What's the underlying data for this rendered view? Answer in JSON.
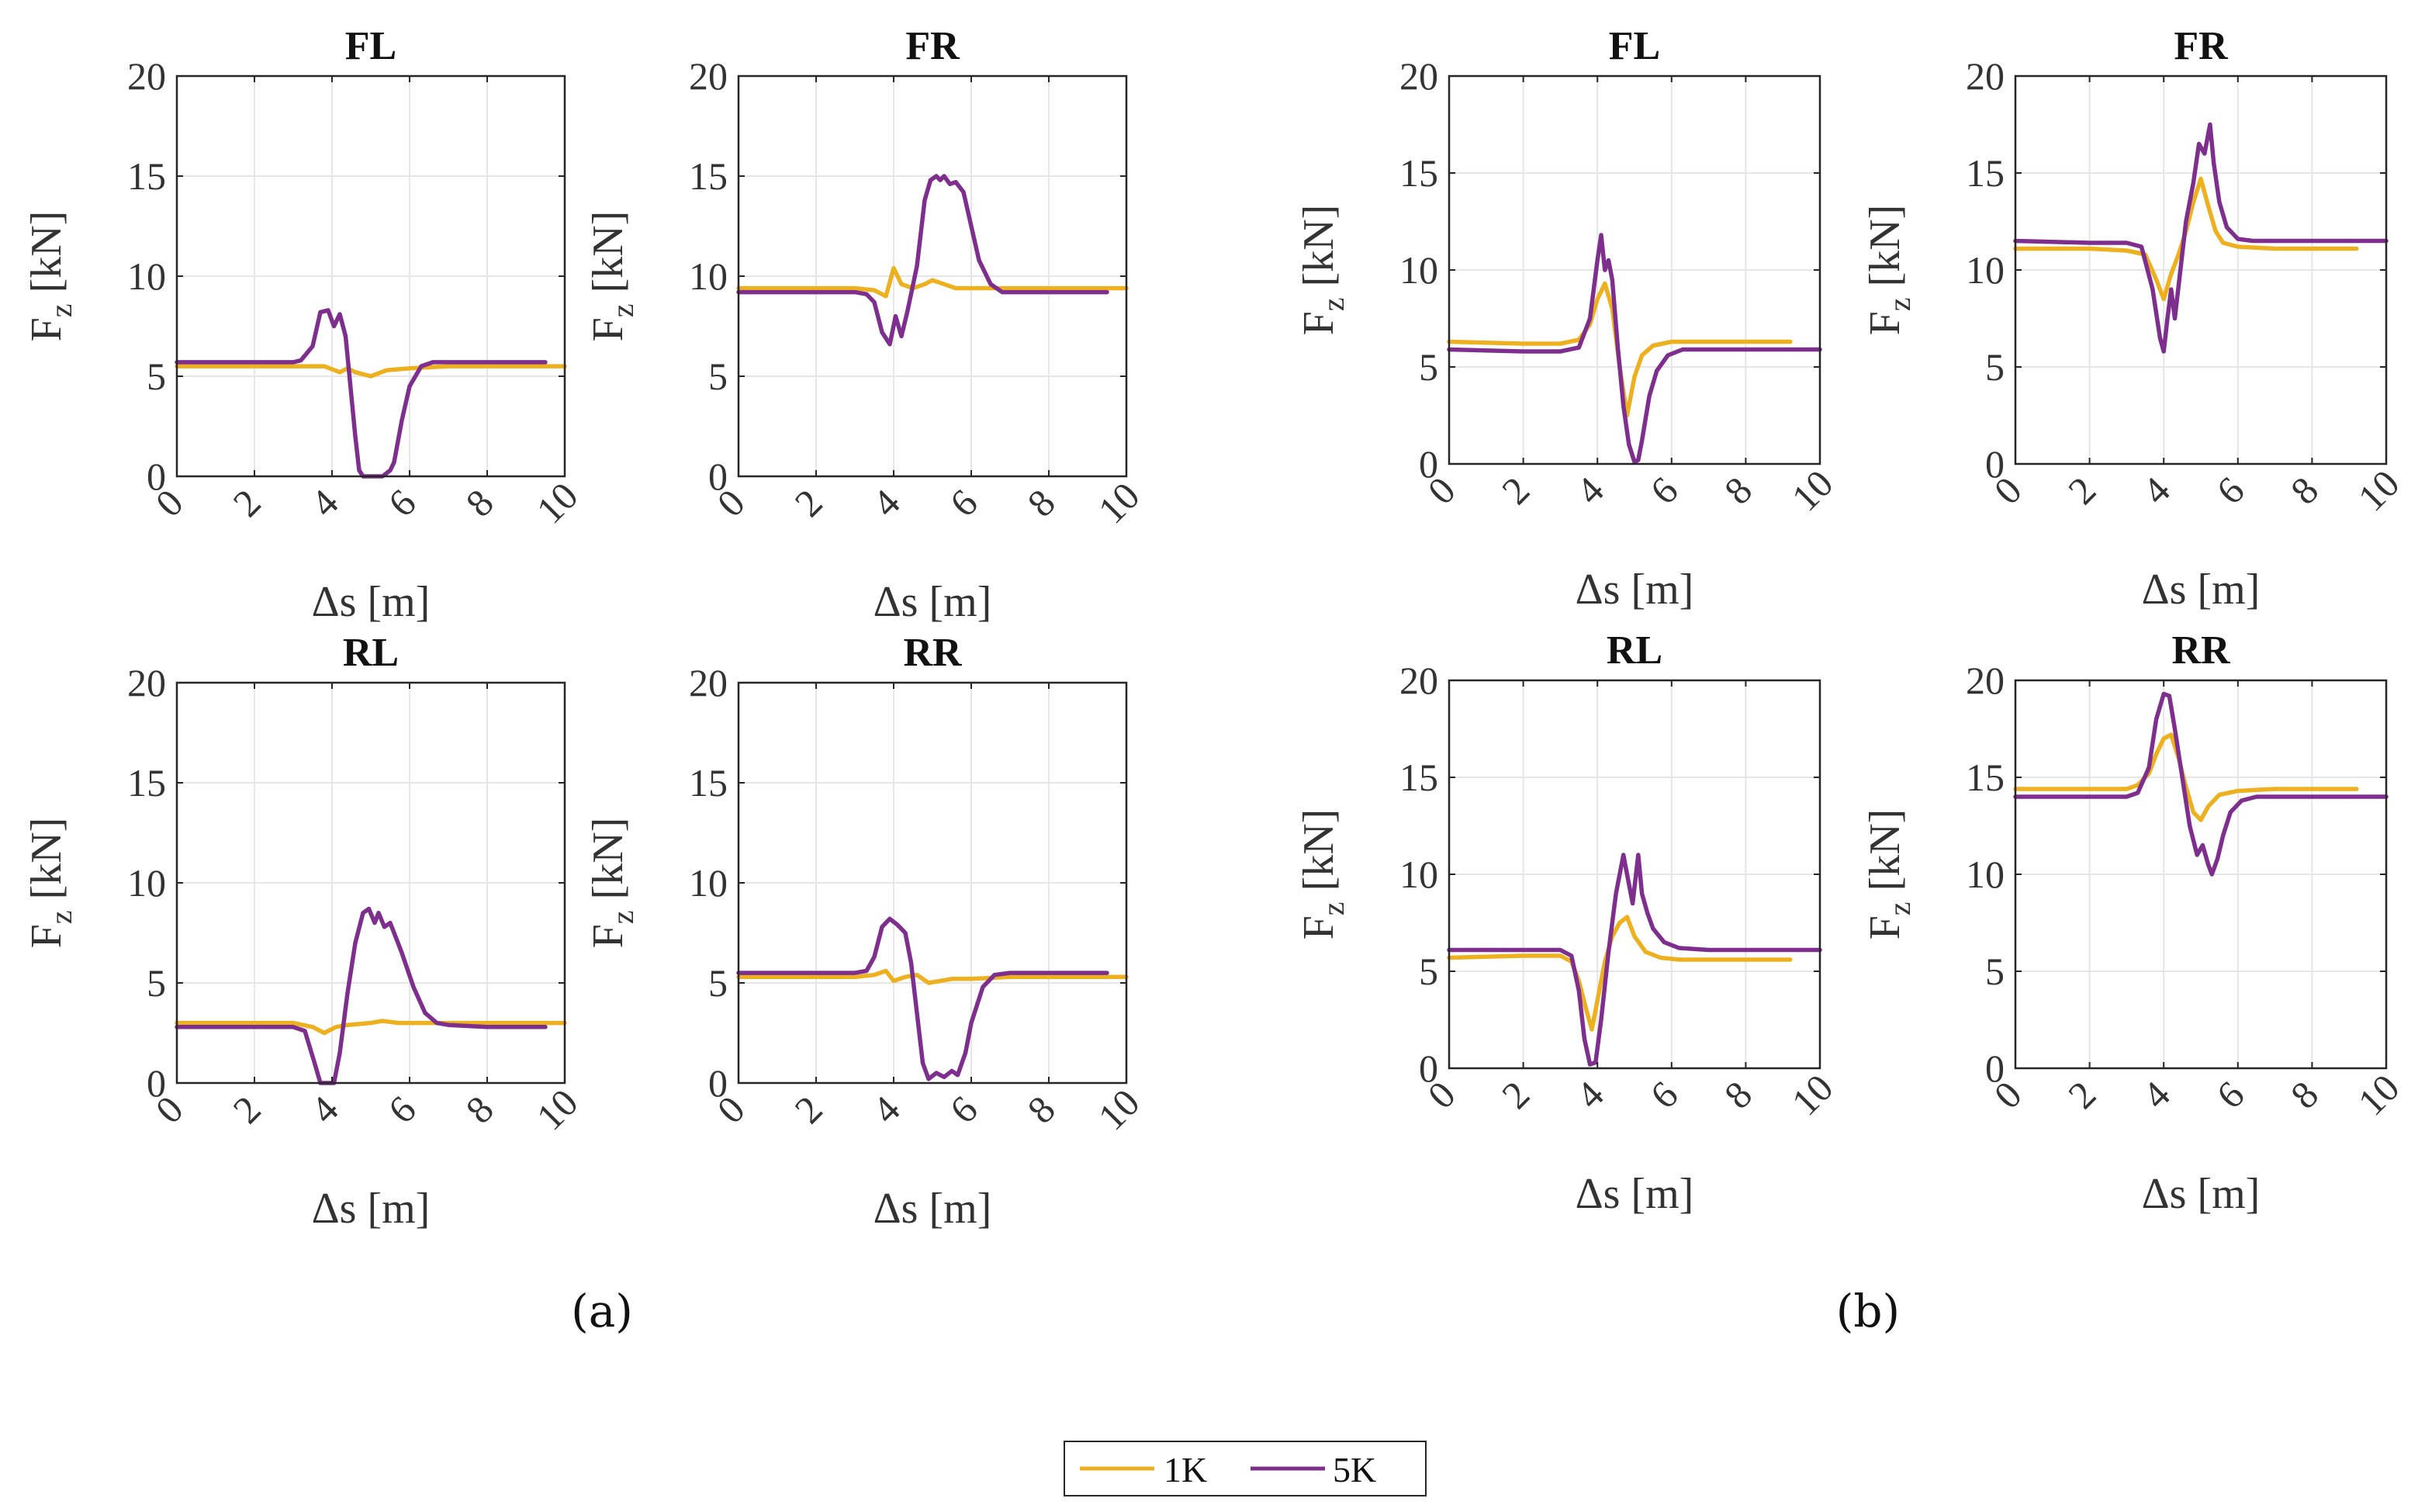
{
  "figure": {
    "panel_labels": [
      "(a)",
      "(b)"
    ]
  },
  "legend": {
    "items": [
      {
        "label": "1K",
        "color": "#EDB120"
      },
      {
        "label": "5K",
        "color": "#7E2F8E"
      }
    ]
  },
  "chart_data": [
    {
      "panel": "(a)",
      "title": "FL",
      "type": "line",
      "xlabel": "Δs [m]",
      "ylabel": "F_z [kN]",
      "xlim": [
        0,
        10
      ],
      "ylim": [
        0,
        20
      ],
      "xticks": [
        0,
        2,
        4,
        6,
        8,
        10
      ],
      "yticks": [
        0,
        5,
        10,
        15,
        20
      ],
      "grid": true,
      "series": [
        {
          "name": "1K",
          "x": [
            0,
            2,
            3,
            3.8,
            4.2,
            4.4,
            4.6,
            5,
            5.4,
            6,
            7,
            8,
            9,
            10
          ],
          "y": [
            5.5,
            5.5,
            5.5,
            5.5,
            5.2,
            5.4,
            5.2,
            5.0,
            5.3,
            5.4,
            5.5,
            5.5,
            5.5,
            5.5
          ]
        },
        {
          "name": "5K",
          "x": [
            0,
            2,
            3,
            3.2,
            3.5,
            3.7,
            3.9,
            4.05,
            4.2,
            4.35,
            4.5,
            4.6,
            4.7,
            4.8,
            5.0,
            5.3,
            5.5,
            5.6,
            5.8,
            6.0,
            6.3,
            6.6,
            7,
            8,
            9.5
          ],
          "y": [
            5.7,
            5.7,
            5.7,
            5.8,
            6.5,
            8.2,
            8.3,
            7.5,
            8.1,
            7.0,
            4.0,
            2.0,
            0.3,
            0,
            0,
            0,
            0.3,
            0.7,
            2.8,
            4.5,
            5.5,
            5.7,
            5.7,
            5.7,
            5.7
          ]
        }
      ]
    },
    {
      "panel": "(a)",
      "title": "FR",
      "type": "line",
      "xlabel": "Δs [m]",
      "ylabel": "F_z [kN]",
      "xlim": [
        0,
        10
      ],
      "ylim": [
        0,
        20
      ],
      "xticks": [
        0,
        2,
        4,
        6,
        8,
        10
      ],
      "yticks": [
        0,
        5,
        10,
        15,
        20
      ],
      "grid": true,
      "series": [
        {
          "name": "1K",
          "x": [
            0,
            2,
            3,
            3.5,
            3.8,
            4.0,
            4.2,
            4.5,
            4.8,
            5.0,
            5.3,
            5.6,
            6,
            7,
            8,
            10
          ],
          "y": [
            9.4,
            9.4,
            9.4,
            9.3,
            9.0,
            10.4,
            9.6,
            9.4,
            9.6,
            9.8,
            9.6,
            9.4,
            9.4,
            9.4,
            9.4,
            9.4
          ]
        },
        {
          "name": "5K",
          "x": [
            0,
            2,
            3,
            3.3,
            3.5,
            3.7,
            3.9,
            4.05,
            4.2,
            4.35,
            4.6,
            4.8,
            4.95,
            5.1,
            5.2,
            5.3,
            5.45,
            5.6,
            5.8,
            6.0,
            6.2,
            6.5,
            6.8,
            7,
            8,
            9.5
          ],
          "y": [
            9.2,
            9.2,
            9.2,
            9.1,
            8.7,
            7.2,
            6.6,
            8.0,
            7.0,
            8.2,
            10.5,
            13.8,
            14.8,
            15.0,
            14.8,
            15.0,
            14.6,
            14.7,
            14.2,
            12.5,
            10.8,
            9.6,
            9.2,
            9.2,
            9.2,
            9.2
          ]
        }
      ]
    },
    {
      "panel": "(a)",
      "title": "RL",
      "type": "line",
      "xlabel": "Δs [m]",
      "ylabel": "F_z [kN]",
      "xlim": [
        0,
        10
      ],
      "ylim": [
        0,
        20
      ],
      "xticks": [
        0,
        2,
        4,
        6,
        8,
        10
      ],
      "yticks": [
        0,
        5,
        10,
        15,
        20
      ],
      "grid": true,
      "series": [
        {
          "name": "1K",
          "x": [
            0,
            2,
            3,
            3.5,
            3.8,
            4.1,
            4.4,
            5,
            5.3,
            5.7,
            6,
            7,
            8,
            10
          ],
          "y": [
            3.0,
            3.0,
            3.0,
            2.8,
            2.5,
            2.8,
            2.9,
            3.0,
            3.1,
            3.0,
            3.0,
            3.0,
            3.0,
            3.0
          ]
        },
        {
          "name": "5K",
          "x": [
            0,
            2,
            3,
            3.3,
            3.55,
            3.7,
            3.9,
            4.05,
            4.2,
            4.4,
            4.6,
            4.8,
            4.95,
            5.1,
            5.2,
            5.35,
            5.5,
            5.6,
            5.8,
            6.1,
            6.4,
            6.7,
            7,
            8,
            9.5
          ],
          "y": [
            2.8,
            2.8,
            2.8,
            2.6,
            1.0,
            0,
            0,
            0,
            1.5,
            4.5,
            7.0,
            8.5,
            8.7,
            8.0,
            8.5,
            7.8,
            8.0,
            7.5,
            6.5,
            4.8,
            3.5,
            3.0,
            2.9,
            2.8,
            2.8
          ]
        }
      ]
    },
    {
      "panel": "(a)",
      "title": "RR",
      "type": "line",
      "xlabel": "Δs [m]",
      "ylabel": "F_z [kN]",
      "xlim": [
        0,
        10
      ],
      "ylim": [
        0,
        20
      ],
      "xticks": [
        0,
        2,
        4,
        6,
        8,
        10
      ],
      "yticks": [
        0,
        5,
        10,
        15,
        20
      ],
      "grid": true,
      "series": [
        {
          "name": "1K",
          "x": [
            0,
            2,
            3,
            3.5,
            3.8,
            4.0,
            4.3,
            4.6,
            4.9,
            5.2,
            5.5,
            6,
            7,
            8,
            10
          ],
          "y": [
            5.3,
            5.3,
            5.3,
            5.4,
            5.6,
            5.1,
            5.3,
            5.4,
            5.0,
            5.1,
            5.2,
            5.2,
            5.3,
            5.3,
            5.3
          ]
        },
        {
          "name": "5K",
          "x": [
            0,
            2,
            3,
            3.3,
            3.5,
            3.7,
            3.9,
            4.1,
            4.3,
            4.45,
            4.6,
            4.75,
            4.9,
            5.1,
            5.3,
            5.5,
            5.65,
            5.85,
            6.0,
            6.3,
            6.6,
            7,
            8,
            9.5
          ],
          "y": [
            5.5,
            5.5,
            5.5,
            5.6,
            6.3,
            7.8,
            8.2,
            7.9,
            7.5,
            6.0,
            3.5,
            1.0,
            0.2,
            0.5,
            0.3,
            0.6,
            0.4,
            1.5,
            3.0,
            4.8,
            5.4,
            5.5,
            5.5,
            5.5
          ]
        }
      ]
    },
    {
      "panel": "(b)",
      "title": "FL",
      "type": "line",
      "xlabel": "Δs [m]",
      "ylabel": "F_z [kN]",
      "xlim": [
        0,
        10
      ],
      "ylim": [
        0,
        20
      ],
      "xticks": [
        0,
        2,
        4,
        6,
        8,
        10
      ],
      "yticks": [
        0,
        5,
        10,
        15,
        20
      ],
      "grid": true,
      "series": [
        {
          "name": "1K",
          "x": [
            0,
            2,
            3,
            3.5,
            3.8,
            4.0,
            4.2,
            4.4,
            4.6,
            4.8,
            5.0,
            5.2,
            5.5,
            6,
            7,
            8,
            9.2
          ],
          "y": [
            6.3,
            6.2,
            6.2,
            6.4,
            7.2,
            8.5,
            9.3,
            8.0,
            5.0,
            2.5,
            4.5,
            5.6,
            6.1,
            6.3,
            6.3,
            6.3,
            6.3
          ]
        },
        {
          "name": "5K",
          "x": [
            0,
            2,
            3,
            3.5,
            3.8,
            4.0,
            4.1,
            4.2,
            4.3,
            4.4,
            4.55,
            4.7,
            4.85,
            5.0,
            5.1,
            5.2,
            5.4,
            5.6,
            5.9,
            6.3,
            7,
            8,
            10
          ],
          "y": [
            5.9,
            5.8,
            5.8,
            6.0,
            7.5,
            10.5,
            11.8,
            10.0,
            10.5,
            9.5,
            6.0,
            3.0,
            1.0,
            0.1,
            0.2,
            1.2,
            3.5,
            4.8,
            5.6,
            5.9,
            5.9,
            5.9,
            5.9
          ]
        }
      ]
    },
    {
      "panel": "(b)",
      "title": "FR",
      "type": "line",
      "xlabel": "Δs [m]",
      "ylabel": "F_z [kN]",
      "xlim": [
        0,
        10
      ],
      "ylim": [
        0,
        20
      ],
      "xticks": [
        0,
        2,
        4,
        6,
        8,
        10
      ],
      "yticks": [
        0,
        5,
        10,
        15,
        20
      ],
      "grid": true,
      "series": [
        {
          "name": "1K",
          "x": [
            0,
            2,
            3,
            3.5,
            3.8,
            4.0,
            4.2,
            4.4,
            4.6,
            4.8,
            5.0,
            5.2,
            5.4,
            5.6,
            6,
            7,
            8,
            9.2
          ],
          "y": [
            11.1,
            11.1,
            11.0,
            10.8,
            9.5,
            8.5,
            9.8,
            10.8,
            12.0,
            13.5,
            14.7,
            13.3,
            12.0,
            11.4,
            11.2,
            11.1,
            11.1,
            11.1
          ]
        },
        {
          "name": "5K",
          "x": [
            0,
            2,
            3,
            3.4,
            3.7,
            3.9,
            4.0,
            4.1,
            4.2,
            4.3,
            4.45,
            4.6,
            4.8,
            4.95,
            5.1,
            5.25,
            5.35,
            5.5,
            5.7,
            6.0,
            6.4,
            7,
            8,
            10
          ],
          "y": [
            11.5,
            11.4,
            11.4,
            11.2,
            9.0,
            6.5,
            5.8,
            7.5,
            9.0,
            7.5,
            10.0,
            12.5,
            14.5,
            16.5,
            16.0,
            17.5,
            15.5,
            13.5,
            12.2,
            11.6,
            11.5,
            11.5,
            11.5,
            11.5
          ]
        }
      ]
    },
    {
      "panel": "(b)",
      "title": "RL",
      "type": "line",
      "xlabel": "Δs [m]",
      "ylabel": "F_z [kN]",
      "xlim": [
        0,
        10
      ],
      "ylim": [
        0,
        20
      ],
      "xticks": [
        0,
        2,
        4,
        6,
        8,
        10
      ],
      "yticks": [
        0,
        5,
        10,
        15,
        20
      ],
      "grid": true,
      "series": [
        {
          "name": "1K",
          "x": [
            0,
            2,
            3,
            3.3,
            3.5,
            3.7,
            3.85,
            4.0,
            4.2,
            4.4,
            4.6,
            4.8,
            5.0,
            5.3,
            5.7,
            6.2,
            7,
            8,
            9.2
          ],
          "y": [
            5.7,
            5.8,
            5.8,
            5.5,
            4.5,
            3.0,
            2.0,
            3.5,
            5.5,
            6.8,
            7.5,
            7.8,
            6.8,
            6.0,
            5.7,
            5.6,
            5.6,
            5.6,
            5.6
          ]
        },
        {
          "name": "5K",
          "x": [
            0,
            2,
            3,
            3.3,
            3.5,
            3.65,
            3.8,
            3.95,
            4.1,
            4.3,
            4.5,
            4.7,
            4.8,
            4.95,
            5.1,
            5.2,
            5.35,
            5.5,
            5.8,
            6.2,
            7,
            8,
            10
          ],
          "y": [
            6.1,
            6.1,
            6.1,
            5.8,
            4.0,
            1.5,
            0.2,
            0.3,
            2.5,
            6.0,
            9.0,
            11.0,
            10.0,
            8.5,
            11.0,
            9.0,
            8.0,
            7.2,
            6.5,
            6.2,
            6.1,
            6.1,
            6.1
          ]
        }
      ]
    },
    {
      "panel": "(b)",
      "title": "RR",
      "type": "line",
      "xlabel": "Δs [m]",
      "ylabel": "F_z [kN]",
      "xlim": [
        0,
        10
      ],
      "ylim": [
        0,
        20
      ],
      "xticks": [
        0,
        2,
        4,
        6,
        8,
        10
      ],
      "yticks": [
        0,
        5,
        10,
        15,
        20
      ],
      "grid": true,
      "series": [
        {
          "name": "1K",
          "x": [
            0,
            2,
            3,
            3.3,
            3.6,
            3.8,
            4.0,
            4.2,
            4.4,
            4.6,
            4.8,
            5.0,
            5.2,
            5.5,
            6,
            7,
            8,
            9.2
          ],
          "y": [
            14.4,
            14.4,
            14.4,
            14.6,
            15.2,
            16.2,
            17.0,
            17.2,
            16.0,
            14.5,
            13.2,
            12.8,
            13.5,
            14.1,
            14.3,
            14.4,
            14.4,
            14.4
          ]
        },
        {
          "name": "5K",
          "x": [
            0,
            2,
            3,
            3.3,
            3.6,
            3.8,
            4.0,
            4.15,
            4.3,
            4.5,
            4.7,
            4.9,
            5.05,
            5.2,
            5.3,
            5.45,
            5.6,
            5.8,
            6.1,
            6.5,
            7,
            8,
            10
          ],
          "y": [
            14.0,
            14.0,
            14.0,
            14.2,
            15.5,
            18.0,
            19.3,
            19.2,
            17.5,
            15.0,
            12.5,
            11.0,
            11.5,
            10.5,
            10.0,
            10.8,
            12.0,
            13.2,
            13.8,
            14.0,
            14.0,
            14.0,
            14.0
          ]
        }
      ]
    }
  ]
}
